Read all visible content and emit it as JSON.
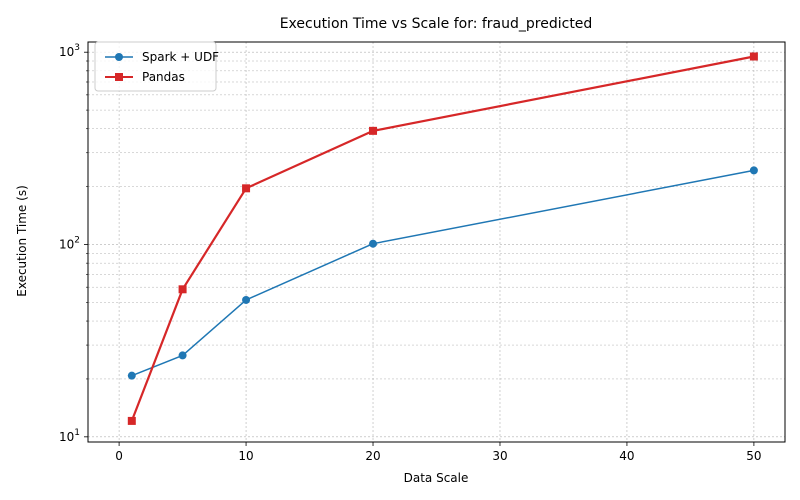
{
  "chart_data": {
    "type": "line",
    "title": "Execution Time vs Scale for: fraud_predicted",
    "xlabel": "Data Scale",
    "ylabel": "Execution Time (s)",
    "x": [
      1,
      5,
      10,
      20,
      50
    ],
    "xlim": [
      -2.45,
      52.45
    ],
    "ylim": [
      9.4,
      1130
    ],
    "yscale": "log",
    "xticks": [
      0,
      10,
      20,
      30,
      40,
      50
    ],
    "yticks": [
      10,
      100,
      1000
    ],
    "grid": true,
    "legend_position": "top-left",
    "series": [
      {
        "name": "Spark + UDF",
        "values": [
          20.8,
          26.5,
          51.5,
          101,
          243
        ],
        "color": "#1f77b4",
        "marker": "circle"
      },
      {
        "name": "Pandas",
        "values": [
          12.1,
          58.5,
          196,
          390,
          950
        ],
        "color": "#d62728",
        "marker": "square"
      }
    ]
  }
}
